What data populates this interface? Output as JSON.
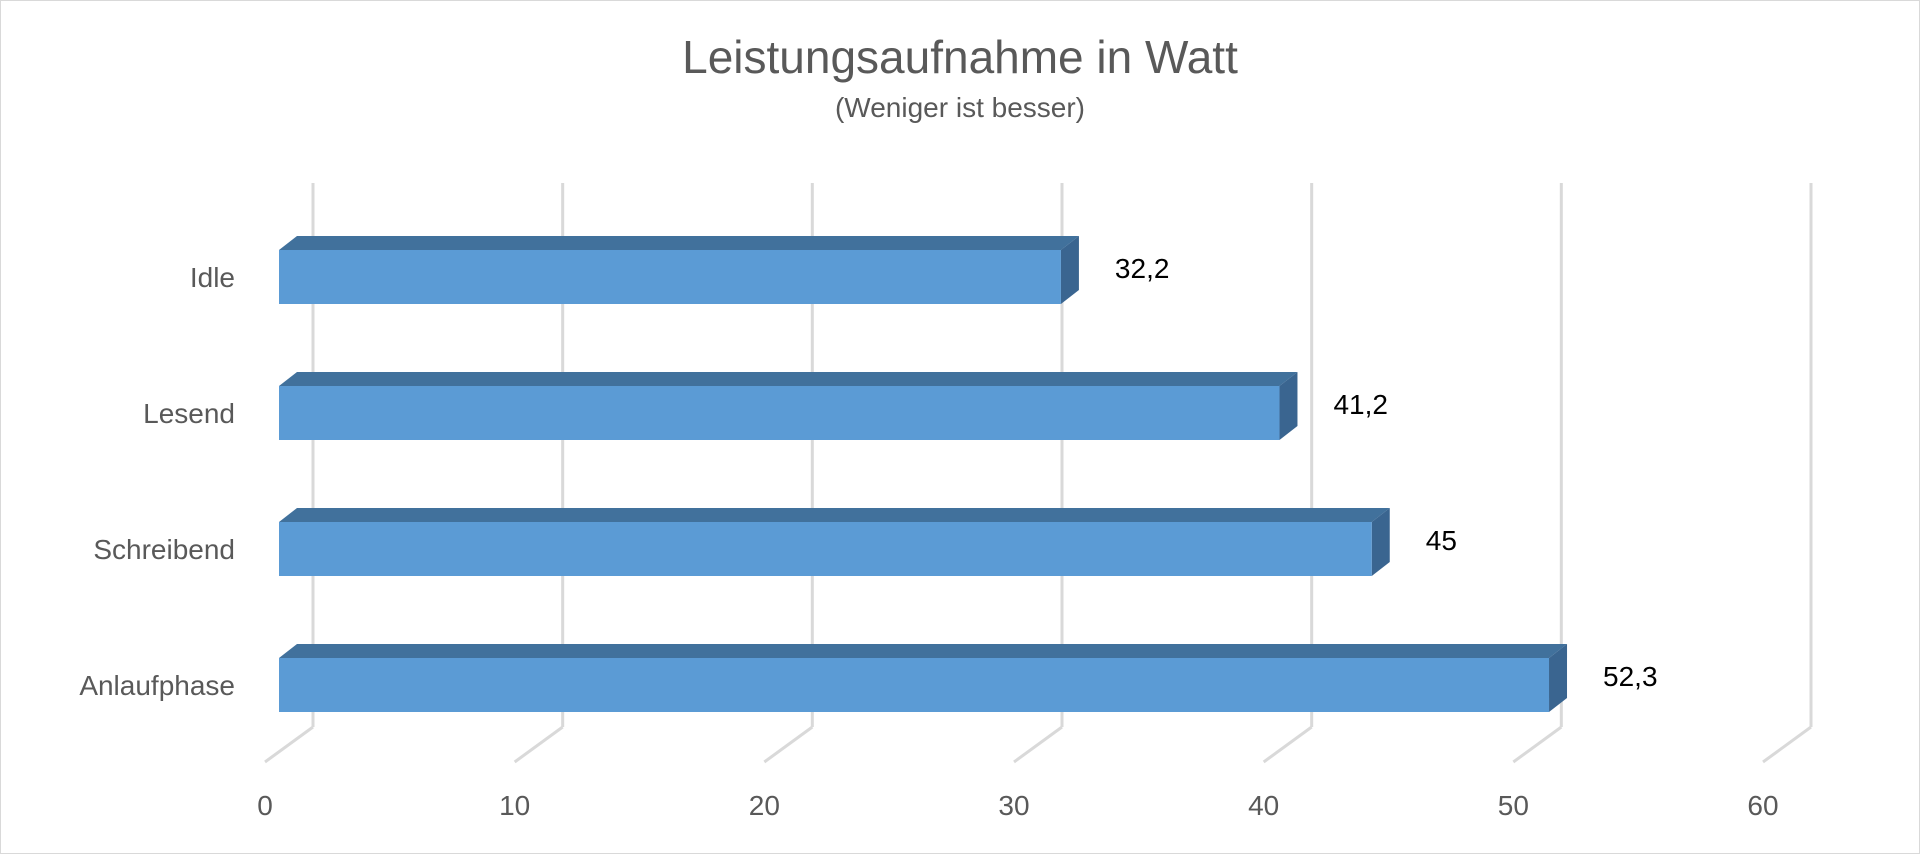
{
  "chart_data": {
    "type": "bar",
    "orientation": "horizontal",
    "title": "Leistungsaufnahme in Watt",
    "subtitle": "(Weniger ist besser)",
    "categories": [
      "Idle",
      "Lesend",
      "Schreibend",
      "Anlaufphase"
    ],
    "values": [
      32.2,
      41.2,
      45,
      52.3
    ],
    "value_labels": [
      "32,2",
      "41,2",
      "45",
      "52,3"
    ],
    "xticks": [
      "0",
      "10",
      "20",
      "30",
      "40",
      "50",
      "60"
    ],
    "xlim": [
      0,
      60
    ],
    "grid": true,
    "legend": "none",
    "colors": {
      "bar_front": "#5b9bd5",
      "bar_top": "#41719c",
      "bar_side": "#3a6590",
      "grid": "#d9d9d9"
    }
  }
}
